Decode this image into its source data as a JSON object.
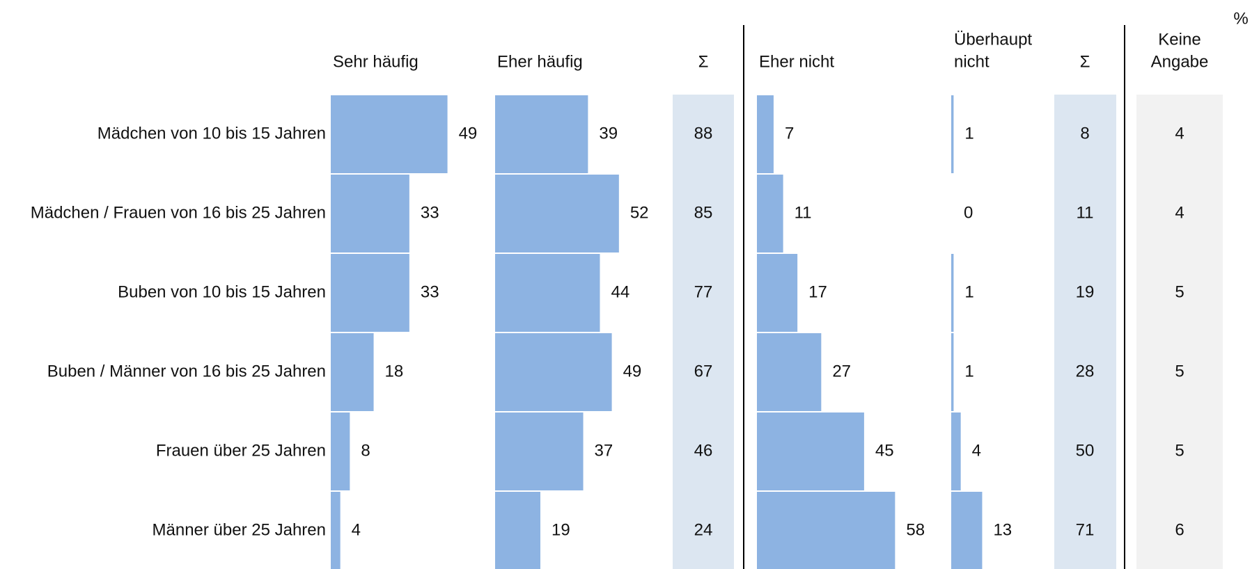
{
  "chart_data": {
    "type": "bar",
    "unit_label": "%",
    "categories": [
      "Mädchen von 10 bis 15 Jahren",
      "Mädchen / Frauen von 16 bis 25 Jahren",
      "Buben von 10 bis 15 Jahren",
      "Buben / Männer von 16 bis 25 Jahren",
      "Frauen über 25 Jahren",
      "Männer über 25 Jahren"
    ],
    "series": [
      {
        "name": "Sehr häufig",
        "values": [
          49,
          33,
          33,
          18,
          8,
          4
        ]
      },
      {
        "name": "Eher häufig",
        "values": [
          39,
          52,
          44,
          49,
          37,
          19
        ]
      },
      {
        "name": "Eher nicht",
        "values": [
          7,
          11,
          17,
          27,
          45,
          58
        ]
      },
      {
        "name": "Überhaupt nicht",
        "values": [
          1,
          0,
          1,
          1,
          4,
          13
        ]
      }
    ],
    "sum_columns": [
      {
        "name": "Σ",
        "values": [
          88,
          85,
          77,
          67,
          46,
          24
        ]
      },
      {
        "name": "Σ",
        "values": [
          8,
          11,
          19,
          28,
          50,
          71
        ]
      }
    ],
    "no_answer": {
      "name": "Keine Angabe",
      "values": [
        4,
        4,
        5,
        5,
        5,
        6
      ]
    },
    "colors": {
      "bar": "#8db3e2",
      "sum_background": "#dce6f1",
      "no_answer_background": "#f2f2f2",
      "divider": "#000000",
      "text": "#111111"
    },
    "xlim": [
      0,
      100
    ],
    "grid": false,
    "legend": "none"
  }
}
